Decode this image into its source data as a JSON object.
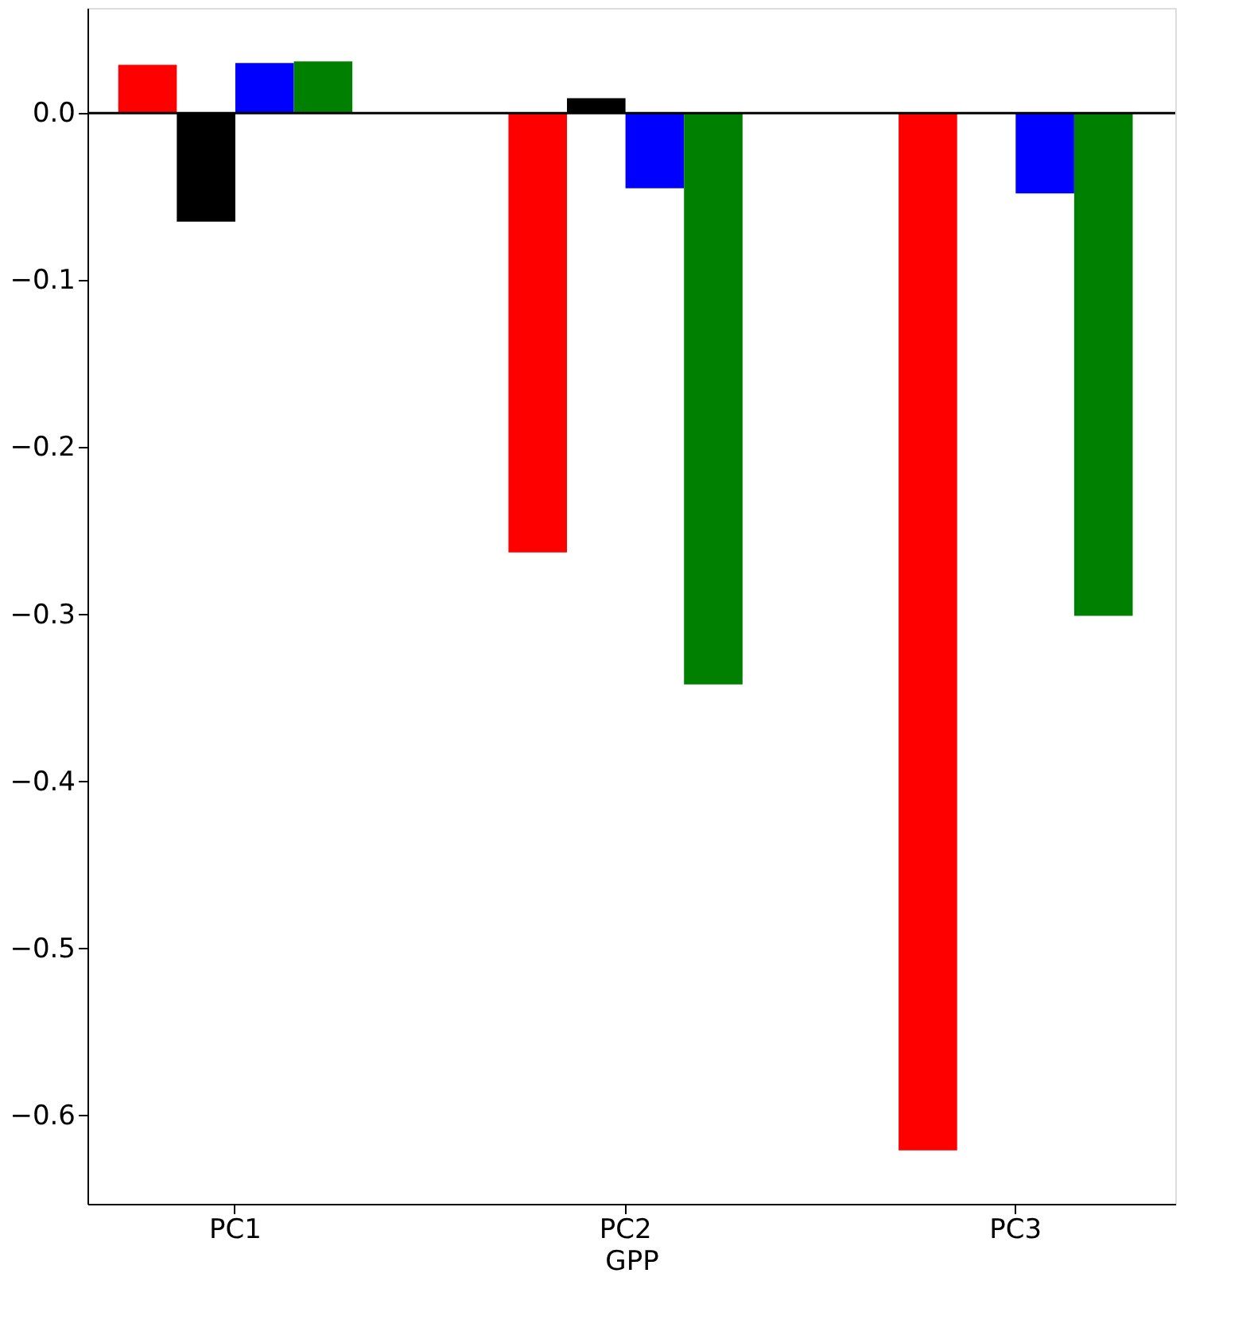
{
  "chart_data": {
    "type": "bar",
    "xlabel": "GPP",
    "categories": [
      "PC1",
      "PC2",
      "PC3"
    ],
    "series": [
      {
        "color": "#ff0000",
        "values": [
          0.029,
          -0.263,
          -0.621
        ]
      },
      {
        "color": "#000000",
        "values": [
          -0.065,
          0.009,
          0.0
        ]
      },
      {
        "color": "#0000ff",
        "values": [
          0.03,
          -0.045,
          -0.048
        ]
      },
      {
        "color": "#008000",
        "values": [
          0.031,
          -0.342,
          -0.301
        ]
      }
    ],
    "ylim": [
      -0.653,
      0.063
    ],
    "yticks": [
      {
        "value": 0.0,
        "label": "0.0"
      },
      {
        "value": -0.1,
        "label": "−0.1"
      },
      {
        "value": -0.2,
        "label": "−0.2"
      },
      {
        "value": -0.3,
        "label": "−0.3"
      },
      {
        "value": -0.4,
        "label": "−0.4"
      },
      {
        "value": -0.5,
        "label": "−0.5"
      },
      {
        "value": -0.6,
        "label": "−0.6"
      }
    ],
    "ref_lines": [
      {
        "axis": "y",
        "value": 0,
        "color": "#000000"
      }
    ],
    "grid": false,
    "legend": false
  }
}
